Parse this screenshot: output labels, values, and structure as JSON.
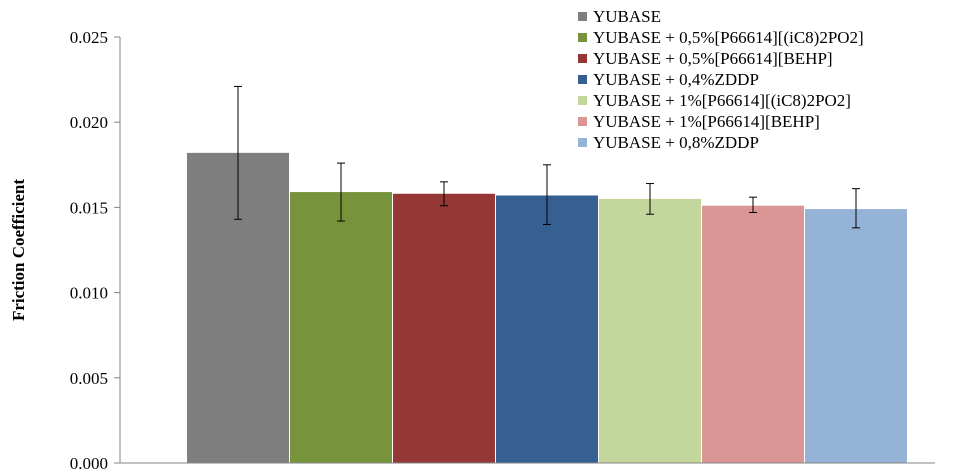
{
  "chart_data": {
    "type": "bar",
    "ylabel": "Friction Coefficient",
    "ylim": [
      0,
      0.025
    ],
    "yticks": [
      "0.000",
      "0.005",
      "0.010",
      "0.015",
      "0.020",
      "0.025"
    ],
    "grid": false,
    "legend": "top-right",
    "series": [
      {
        "name": "YUBASE",
        "value": 0.0182,
        "error": [
          0.0143,
          0.0221
        ],
        "color": "#7f7f7f"
      },
      {
        "name": "YUBASE + 0,5%[P66614][(iC8)2PO2]",
        "value": 0.0159,
        "error": [
          0.0142,
          0.0176
        ],
        "color": "#77933c"
      },
      {
        "name": "YUBASE + 0,5%[P66614][BEHP]",
        "value": 0.0158,
        "error": [
          0.0151,
          0.0165
        ],
        "color": "#953735"
      },
      {
        "name": "YUBASE + 0,4%ZDDP",
        "value": 0.0157,
        "error": [
          0.014,
          0.0175
        ],
        "color": "#376092"
      },
      {
        "name": "YUBASE + 1%[P66614][(iC8)2PO2]",
        "value": 0.0155,
        "error": [
          0.0146,
          0.0164
        ],
        "color": "#c3d69b"
      },
      {
        "name": "YUBASE + 1%[P66614][BEHP]",
        "value": 0.0151,
        "error": [
          0.0147,
          0.0156
        ],
        "color": "#d99694"
      },
      {
        "name": "YUBASE + 0,8%ZDDP",
        "value": 0.0149,
        "error": [
          0.0138,
          0.0161
        ],
        "color": "#95b3d7"
      }
    ]
  }
}
